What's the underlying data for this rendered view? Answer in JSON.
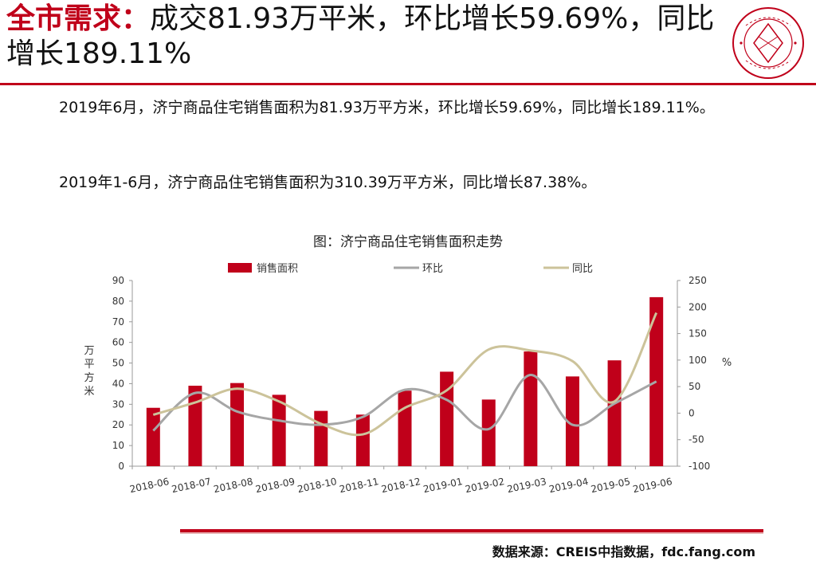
{
  "header": {
    "title_accent": "全市需求：",
    "title_rest": "成交81.93万平米，环比增长59.69%，同比增长189.11%"
  },
  "logo": {
    "center_text": "中指",
    "ring_text": "中国指数研究院 CHINA INDEX ACADEMY"
  },
  "body": {
    "paragraph_1": "2019年6月，济宁商品住宅销售面积为81.93万平方米，环比增长59.69%，同比增长189.11%。",
    "paragraph_2": "2019年1-6月，济宁商品住宅销售面积为310.39万平方米，同比增长87.38%。"
  },
  "footer": {
    "source": "数据来源：CREIS中指数据，fdc.fang.com"
  },
  "colors": {
    "accent": "#c0001a",
    "bar": "#c0001a",
    "mom_line": "#a6a6a6",
    "yoy_line": "#ccc39a"
  },
  "chart_data": {
    "type": "bar",
    "title": "图：济宁商品住宅销售面积走势",
    "categories": [
      "2018-06",
      "2018-07",
      "2018-08",
      "2018-09",
      "2018-10",
      "2018-11",
      "2018-12",
      "2019-01",
      "2019-02",
      "2019-03",
      "2019-04",
      "2019-05",
      "2019-06"
    ],
    "series": [
      {
        "name": "销售面积",
        "type": "bar",
        "axis": "left",
        "values": [
          28.3,
          39.0,
          40.3,
          34.6,
          26.8,
          25.0,
          36.6,
          45.8,
          32.3,
          55.6,
          43.5,
          51.3,
          81.93
        ]
      },
      {
        "name": "环比",
        "type": "line",
        "axis": "right",
        "values": [
          -33,
          38,
          3,
          -14,
          -22,
          -7,
          44,
          25,
          -30,
          72,
          -22,
          18,
          59.69
        ]
      },
      {
        "name": "同比",
        "type": "line",
        "axis": "right",
        "values": [
          -3,
          20,
          46,
          22,
          -20,
          -40,
          10,
          43,
          120,
          118,
          98,
          22,
          189.11
        ]
      }
    ],
    "ylabel": "万平方米",
    "ylim": [
      0,
      90
    ],
    "yticks": [
      0,
      10,
      20,
      30,
      40,
      50,
      60,
      70,
      80,
      90
    ],
    "y2label": "%",
    "y2lim": [
      -100,
      250
    ],
    "y2ticks": [
      -100,
      -50,
      0,
      50,
      100,
      150,
      200,
      250
    ],
    "legend": "top",
    "grid": false
  }
}
